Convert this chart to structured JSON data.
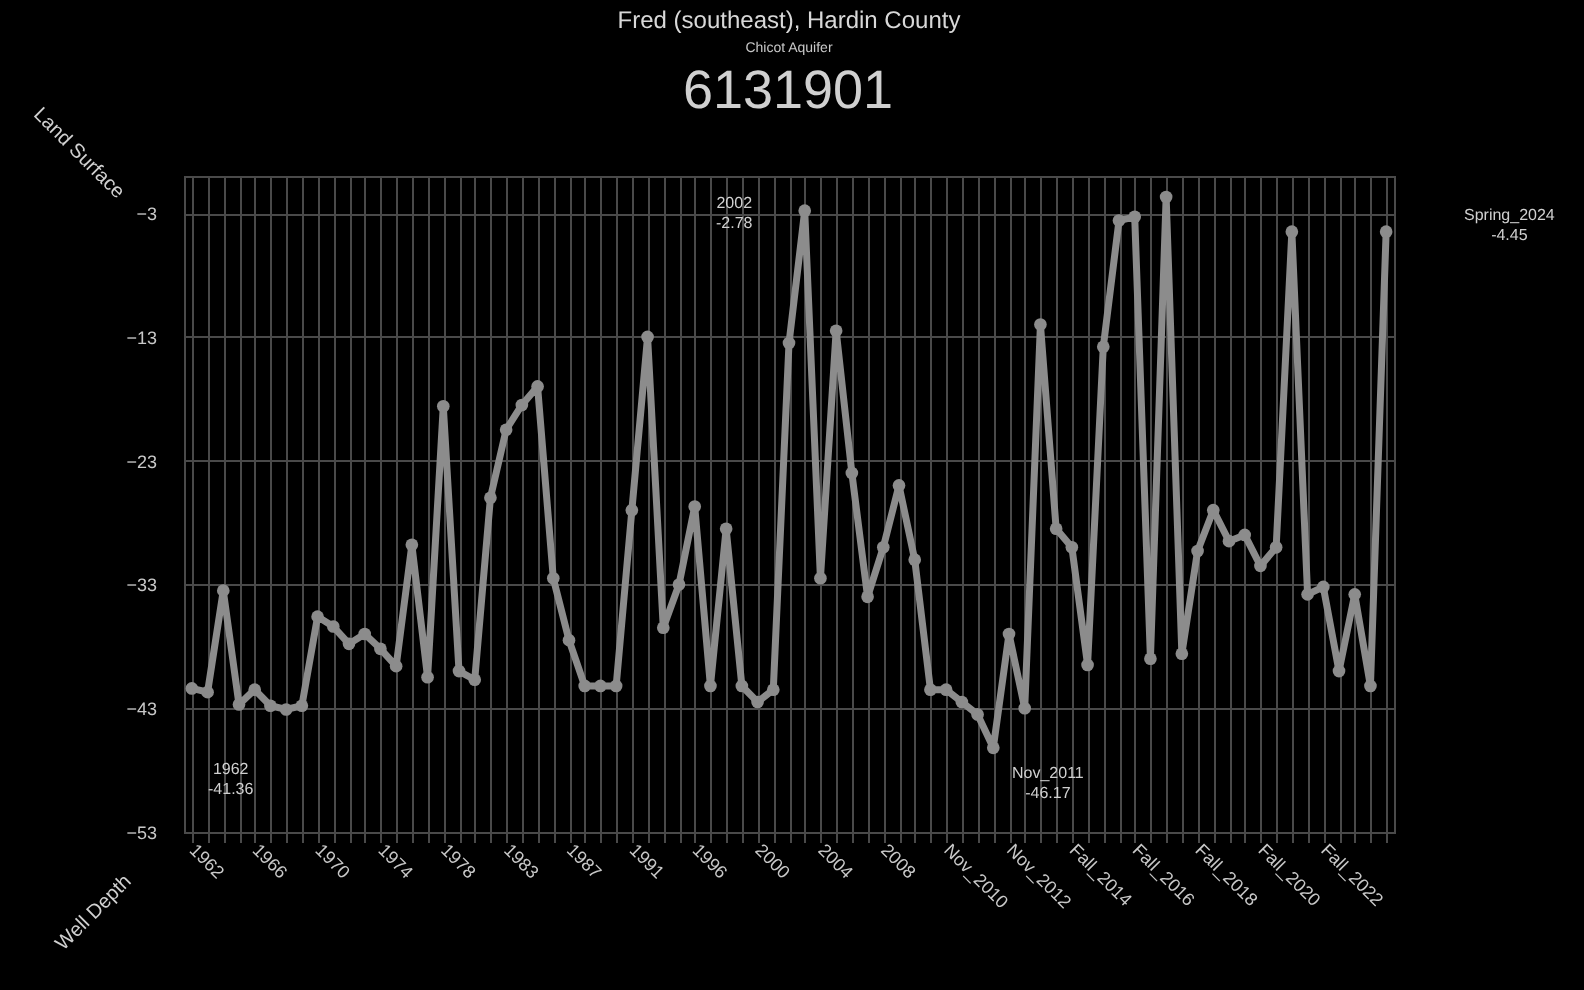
{
  "chart_data": {
    "type": "line",
    "title": "Fred (southeast), Hardin County",
    "subtitle": "Chicot Aquifer",
    "annotations": [
      "6131901",
      "Land Surface",
      "Well Depth",
      "1962\n-41.36",
      "2002\n-2.78",
      "Nov_2011\n-46.17",
      "Spring_2024\n-4.45"
    ],
    "categories": [
      "1962",
      null,
      null,
      null,
      "1966",
      null,
      null,
      null,
      "1970",
      null,
      null,
      null,
      "1974",
      null,
      null,
      null,
      "1978",
      null,
      null,
      null,
      "1983",
      null,
      null,
      null,
      "1987",
      null,
      null,
      null,
      "1991",
      null,
      null,
      null,
      "1996",
      null,
      null,
      null,
      "2000",
      null,
      null,
      null,
      "2004",
      null,
      null,
      null,
      "2008",
      null,
      null,
      null,
      "Nov_2010",
      null,
      null,
      null,
      "Nov_2012",
      null,
      null,
      null,
      "Fall_2014",
      null,
      null,
      null,
      "Fall_2016",
      null,
      null,
      null,
      "Fall_2018",
      null,
      null,
      null,
      "Fall_2020",
      null,
      null,
      null,
      "Fall_2022",
      null,
      null,
      null,
      null
    ],
    "series": [
      {
        "color": "#8c8c8c",
        "values": [
          -41.4,
          -41.7,
          -33.5,
          -42.7,
          -41.5,
          -42.8,
          -43.1,
          -42.8,
          -35.6,
          -36.4,
          -37.8,
          -37.0,
          -38.2,
          -39.6,
          -29.8,
          -40.5,
          -18.6,
          -40.0,
          -40.7,
          -26.0,
          -20.5,
          -18.5,
          -17.0,
          -32.5,
          -37.5,
          -41.2,
          -41.2,
          -41.2,
          -27.0,
          -13.0,
          -36.5,
          -33.0,
          -26.7,
          -41.2,
          -28.5,
          -41.2,
          -42.5,
          -41.5,
          -13.5,
          -2.8,
          -32.5,
          -12.5,
          -24.0,
          -34.0,
          -30.0,
          -25.0,
          -31.0,
          -41.5,
          -41.5,
          -42.5,
          -43.5,
          -46.2,
          -37.0,
          -43.0,
          -12.0,
          -28.5,
          -30.0,
          -39.5,
          -13.8,
          -3.6,
          -3.3,
          -39.0,
          -1.7,
          -38.6,
          -30.3,
          -27.0,
          -29.5,
          -29.0,
          -31.5,
          -30.0,
          -4.5,
          -33.8,
          -33.2,
          -40.0,
          -33.8,
          -41.2,
          -4.5
        ]
      }
    ],
    "ylim": [
      -53,
      0
    ],
    "yticks": [
      -53,
      -43,
      -33,
      -23,
      -13,
      -3
    ],
    "grid": true,
    "marker": "circle",
    "line_style": "solid"
  }
}
